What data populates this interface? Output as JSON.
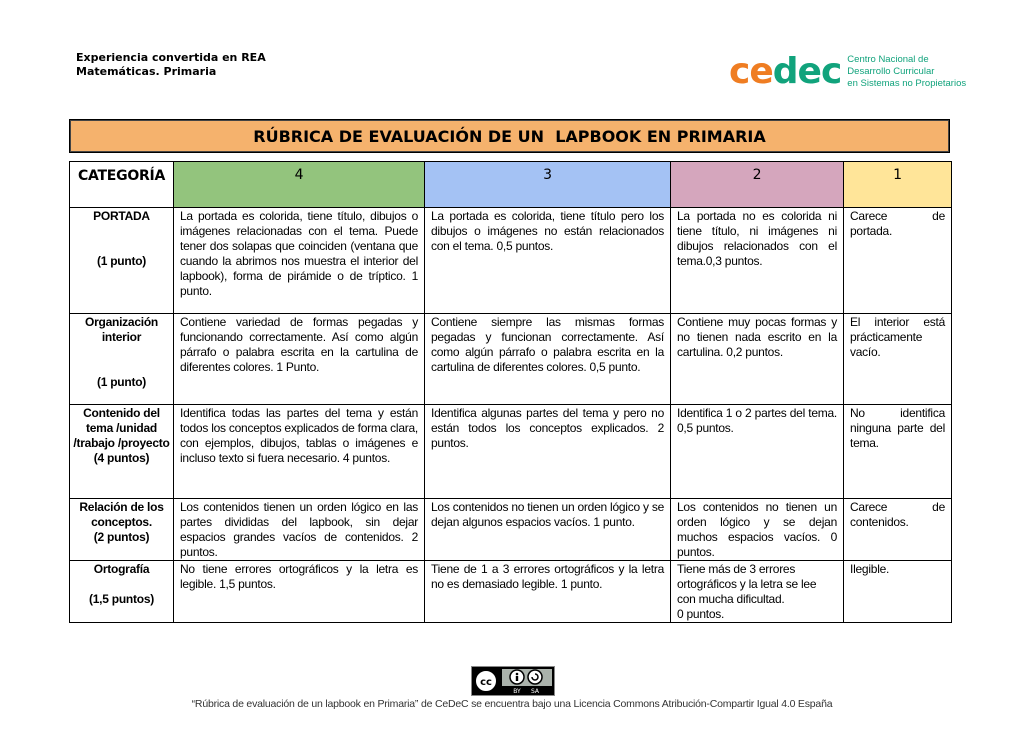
{
  "header": {
    "line1": "Experiencia convertida en REA",
    "line2": "Matemáticas. Primaria"
  },
  "logo": {
    "word_orange": "ce",
    "word_green": "dec",
    "sub1": "Centro Nacional de",
    "sub2": "Desarrollo Curricular",
    "sub3": "en Sistemas no Propietarios"
  },
  "title": "RÚBRICA DE EVALUACIÓN DE UN  LAPBOOK EN PRIMARIA",
  "colors": {
    "title_bg": "#f5b26d",
    "col4": "#93c47d",
    "col3": "#a4c2f4",
    "col2": "#d5a6bd",
    "col1": "#ffe599"
  },
  "table": {
    "headers": [
      "CATEGORÍA",
      "4",
      "3",
      "2",
      "1"
    ],
    "rows": [
      {
        "cat": "PORTADA",
        "points": "(1 punto)",
        "c4": "La portada es colorida, tiene título, dibujos o imágenes relacionadas con el tema. Puede tener dos solapas que coinciden (ventana que cuando la abrimos nos muestra el interior del lapbook), forma de pirámide o de tríptico. 1 punto.",
        "c3": "La portada es colorida, tiene título pero los dibujos o imágenes no están relacionados con el tema. 0,5 puntos.",
        "c2": "La portada no es colorida ni tiene título, ni imágenes ni dibujos relacionados con el tema.0,3 puntos.",
        "c1": "Carece de portada."
      },
      {
        "cat": "Organización interior",
        "points": "(1 punto)",
        "c4": "Contiene variedad de formas pegadas y funcionando correctamente. Así como algún párrafo o palabra escrita en la cartulina de diferentes colores. 1 Punto.",
        "c3": "Contiene siempre las mismas formas pegadas y funcionan correctamente. Así como algún párrafo o palabra escrita en la cartulina de diferentes colores. 0,5 punto.",
        "c2": "Contiene muy pocas formas y no tienen nada escrito en la cartulina. 0,2 puntos.",
        "c1": "El interior está prácticamente vacío."
      },
      {
        "cat": "Contenido del tema /unidad /trabajo /proyecto",
        "points": "(4 puntos)",
        "c4": "Identifica todas las partes del tema y están todos los conceptos explicados de forma clara, con ejemplos, dibujos, tablas o imágenes e incluso texto si fuera necesario. 4 puntos.",
        "c3": "Identifica algunas partes del tema y pero no están todos los conceptos explicados. 2 puntos.",
        "c2": "Identifica 1 o 2 partes del tema. 0,5 puntos.",
        "c1": "No identifica ninguna parte del tema."
      },
      {
        "cat": "Relación de los conceptos.",
        "points": "(2 puntos)",
        "c4": "Los contenidos tienen un orden lógico en las partes divididas del lapbook, sin dejar espacios grandes vacíos de contenidos. 2 puntos.",
        "c3": "Los contenidos no tienen un orden lógico y se dejan algunos espacios vacíos. 1 punto.",
        "c2": "Los contenidos no tienen un orden lógico y se dejan muchos espacios vacíos. 0 puntos.",
        "c1": "Carece de contenidos."
      },
      {
        "cat": "Ortografía",
        "points": "(1,5 puntos)",
        "c4": "No tiene errores ortográficos y la letra es legible. 1,5 puntos.",
        "c3": "Tiene de 1 a 3 errores ortográficos y la letra no es demasiado legible. 1 punto.",
        "c2": "Tiene más de 3 errores ortográficos y la letra se lee con mucha dificultad.",
        "c2b": "0 puntos.",
        "c1": "Ilegible."
      }
    ]
  },
  "footer": {
    "license_badge": {
      "cc": "cc",
      "by": "BY",
      "sa": "SA"
    },
    "text": "“Rúbrica de evaluación de un lapbook en Primaria” de CeDeC se encuentra bajo una Licencia Commons Atribución-Compartir Igual 4.0 España"
  }
}
